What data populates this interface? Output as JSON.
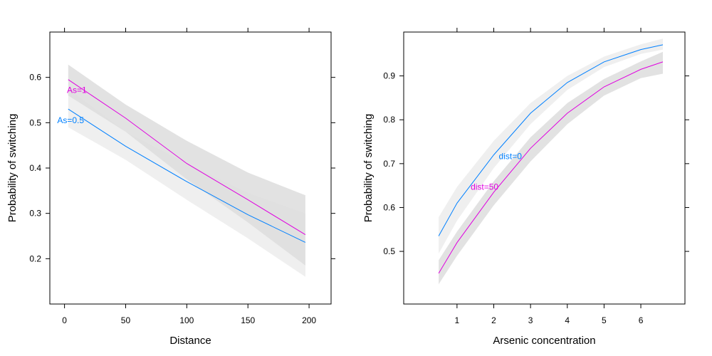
{
  "chart_data": [
    {
      "type": "line",
      "title": "",
      "xlabel": "Distance",
      "ylabel": "Probability of switching",
      "xlim": [
        -12,
        218
      ],
      "ylim": [
        0.1,
        0.7
      ],
      "xticks": [
        0,
        50,
        100,
        150,
        200
      ],
      "yticks": [
        0.2,
        0.3,
        0.4,
        0.5,
        0.6
      ],
      "grid": false,
      "series": [
        {
          "name": "As=0.5",
          "color": "#0080ff",
          "band_color": "#ececec",
          "label_at": [
            5,
            0.505
          ],
          "x": [
            3,
            50,
            100,
            150,
            197
          ],
          "y": [
            0.53,
            0.448,
            0.37,
            0.297,
            0.236
          ],
          "lower": [
            0.49,
            0.418,
            0.33,
            0.245,
            0.16
          ],
          "upper": [
            0.575,
            0.48,
            0.41,
            0.345,
            0.3
          ]
        },
        {
          "name": "As=1",
          "color": "#e000e0",
          "band_color": "#dddddd",
          "label_at": [
            10,
            0.572
          ],
          "x": [
            3,
            50,
            100,
            150,
            197
          ],
          "y": [
            0.595,
            0.51,
            0.41,
            0.33,
            0.253
          ],
          "lower": [
            0.56,
            0.48,
            0.375,
            0.28,
            0.185
          ],
          "upper": [
            0.628,
            0.54,
            0.46,
            0.39,
            0.34
          ]
        }
      ]
    },
    {
      "type": "line",
      "title": "",
      "xlabel": "Arsenic concentration",
      "ylabel": "Probability of switching",
      "xlim": [
        -0.45,
        7.2
      ],
      "ylim": [
        0.38,
        1.0
      ],
      "xticks": [
        1,
        2,
        3,
        4,
        5,
        6
      ],
      "yticks": [
        0.5,
        0.6,
        0.7,
        0.8,
        0.9
      ],
      "grid": false,
      "series": [
        {
          "name": "dist=0",
          "color": "#0080ff",
          "band_color": "#ececec",
          "label_at": [
            2.45,
            0.717
          ],
          "x": [
            0.5,
            1,
            2,
            3,
            4,
            5,
            6,
            6.6
          ],
          "y": [
            0.535,
            0.61,
            0.72,
            0.815,
            0.885,
            0.932,
            0.96,
            0.971
          ],
          "lower": [
            0.495,
            0.57,
            0.69,
            0.79,
            0.868,
            0.92,
            0.95,
            0.96
          ],
          "upper": [
            0.578,
            0.647,
            0.752,
            0.838,
            0.9,
            0.944,
            0.972,
            0.985
          ]
        },
        {
          "name": "dist=50",
          "color": "#e000e0",
          "band_color": "#dddddd",
          "label_at": [
            1.75,
            0.647
          ],
          "x": [
            0.5,
            1,
            2,
            3,
            4,
            5,
            6,
            6.6
          ],
          "y": [
            0.45,
            0.52,
            0.635,
            0.735,
            0.815,
            0.875,
            0.915,
            0.932
          ],
          "lower": [
            0.425,
            0.49,
            0.605,
            0.705,
            0.79,
            0.855,
            0.895,
            0.905
          ],
          "upper": [
            0.48,
            0.545,
            0.66,
            0.76,
            0.838,
            0.893,
            0.933,
            0.955
          ]
        }
      ]
    }
  ]
}
